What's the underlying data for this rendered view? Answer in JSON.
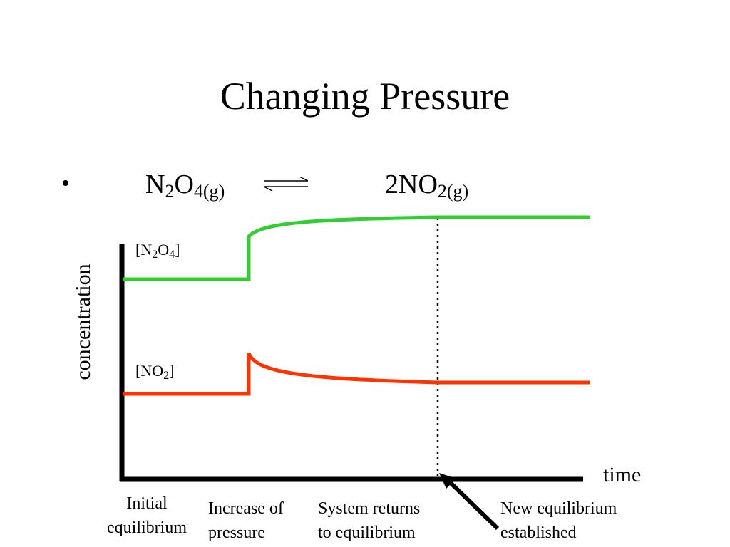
{
  "title": "Changing Pressure",
  "bullet": "•",
  "equation": {
    "reactant": {
      "coef": "",
      "main": "N",
      "sub1": "2",
      "mid": "O",
      "sub2": "4",
      "phase": "(g)"
    },
    "product": {
      "coef": "2",
      "main": "NO",
      "sub1": "2",
      "phase": "(g)"
    }
  },
  "arrow_icon": "equilibrium-harpoons",
  "y_label": "concentration",
  "x_label": "time",
  "series_labels": {
    "n2o4": {
      "open": "[N",
      "sub1": "2",
      "mid": "O",
      "sub2": "4",
      "close": "]"
    },
    "no2": {
      "open": "[NO",
      "sub1": "2",
      "close": "]"
    }
  },
  "annotations": {
    "initial": [
      "Initial",
      "equilibrium"
    ],
    "increase": [
      "Increase of",
      "pressure"
    ],
    "returns": [
      "System returns",
      "to equilibrium"
    ],
    "new_eq": [
      "New equilibrium",
      "established"
    ]
  },
  "colors": {
    "n2o4": "#33cc33",
    "no2": "#ff3300",
    "axis": "#000000"
  }
}
